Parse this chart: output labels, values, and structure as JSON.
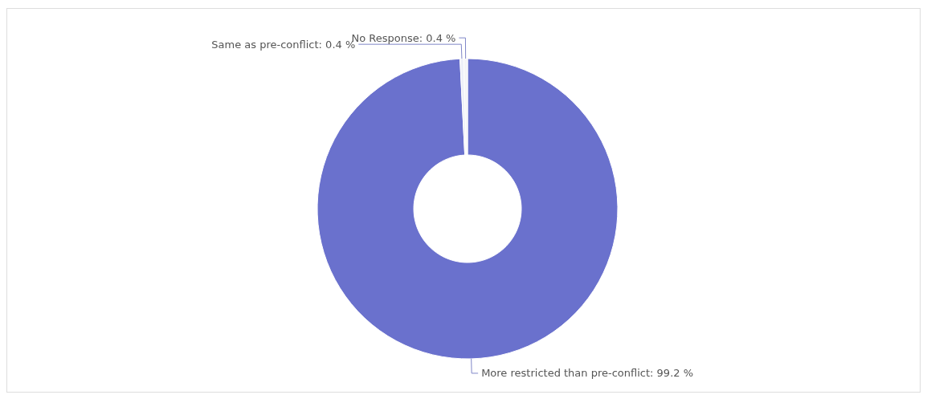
{
  "chart_data": {
    "type": "donut",
    "categories": [
      "More restricted than pre-conflict",
      "Same as pre-conflict",
      "No Response"
    ],
    "values": [
      99.2,
      0.4,
      0.4
    ],
    "colors": [
      "#6a71cd",
      "#eef0f8",
      "#f4f4f6"
    ],
    "value_labels": [
      ": 99.2 %",
      ": 0.4 %",
      ": 0.4 %"
    ]
  }
}
